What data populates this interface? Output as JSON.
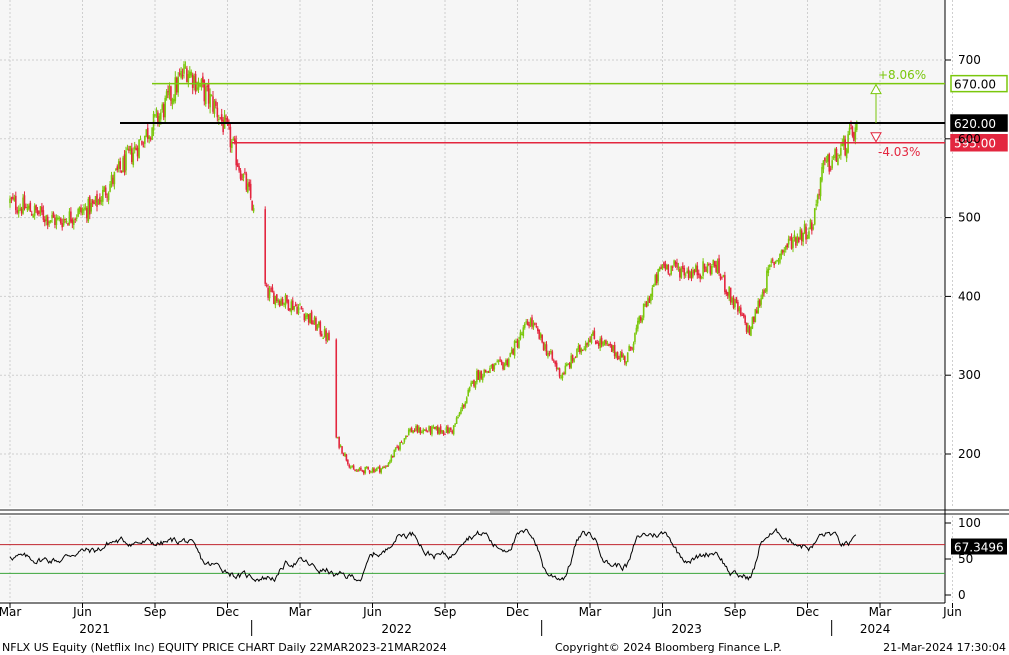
{
  "chart_data": [
    {
      "type": "candlestick",
      "title": "NFLX US Equity (Netflix Inc) EQUITY PRICE CHART",
      "x_tick_labels": [
        "Mar",
        "Jun",
        "Sep",
        "Dec",
        "Mar",
        "Jun",
        "Sep",
        "Dec",
        "Mar",
        "Jun",
        "Sep",
        "Dec",
        "Mar",
        "Jun"
      ],
      "year_labels": [
        "2021",
        "2022",
        "2023",
        "2024"
      ],
      "y_ticks": [
        200,
        300,
        400,
        500,
        600,
        700
      ],
      "ylim": [
        130,
        760
      ],
      "key_points": [
        {
          "month_index": 0,
          "price": 520
        },
        {
          "month_index": 2,
          "price": 495
        },
        {
          "month_index": 3.5,
          "price": 515
        },
        {
          "month_index": 5,
          "price": 580
        },
        {
          "month_index": 6.2,
          "price": 630
        },
        {
          "month_index": 7.3,
          "price": 690
        },
        {
          "month_index": 8.5,
          "price": 640
        },
        {
          "month_index": 9.1,
          "price": 600
        },
        {
          "month_index": 10.0,
          "price": 520
        },
        {
          "month_index": 10.6,
          "price": 405
        },
        {
          "month_index": 12.0,
          "price": 385
        },
        {
          "month_index": 13.2,
          "price": 345
        },
        {
          "month_index": 13.5,
          "price": 220
        },
        {
          "month_index": 14.2,
          "price": 178
        },
        {
          "month_index": 15.5,
          "price": 182
        },
        {
          "month_index": 16.5,
          "price": 230
        },
        {
          "month_index": 18.3,
          "price": 230
        },
        {
          "month_index": 19.3,
          "price": 300
        },
        {
          "month_index": 20.5,
          "price": 315
        },
        {
          "month_index": 21.5,
          "price": 370
        },
        {
          "month_index": 22.8,
          "price": 300
        },
        {
          "month_index": 24.0,
          "price": 350
        },
        {
          "month_index": 25.5,
          "price": 320
        },
        {
          "month_index": 26.2,
          "price": 380
        },
        {
          "month_index": 27.0,
          "price": 440
        },
        {
          "month_index": 28.3,
          "price": 430
        },
        {
          "month_index": 29.2,
          "price": 440
        },
        {
          "month_index": 29.8,
          "price": 400
        },
        {
          "month_index": 30.6,
          "price": 355
        },
        {
          "month_index": 31.5,
          "price": 440
        },
        {
          "month_index": 32.3,
          "price": 470
        },
        {
          "month_index": 33.2,
          "price": 490
        },
        {
          "month_index": 33.6,
          "price": 560
        },
        {
          "month_index": 34.3,
          "price": 580
        },
        {
          "month_index": 35.0,
          "price": 612
        }
      ],
      "levels": [
        {
          "label": "670.00",
          "value": 670,
          "color": "#7ac70c"
        },
        {
          "label": "620.00",
          "value": 620,
          "color": "#000000"
        },
        {
          "label": "595.00",
          "value": 595,
          "color": "#e3263f"
        }
      ],
      "annotations": {
        "up_pct": "+8.06%",
        "down_pct": "-4.03%"
      },
      "up_color": "#7ac70c",
      "down_color": "#e3263f"
    },
    {
      "type": "line",
      "y_ticks": [
        0,
        50,
        100
      ],
      "ylim": [
        0,
        100
      ],
      "thresholds": [
        {
          "value": 70,
          "color": "#c0252e"
        },
        {
          "value": 30,
          "color": "#3aa53a"
        }
      ],
      "last_value_label": "67.3496",
      "line_color": "#000000"
    }
  ],
  "footer": {
    "left": "NFLX US Equity (Netflix Inc) EQUITY PRICE CHART  Daily 22MAR2023-21MAR2024",
    "center": "Copyright© 2024 Bloomberg Finance L.P.",
    "right": "21-Mar-2024 17:30:04"
  }
}
